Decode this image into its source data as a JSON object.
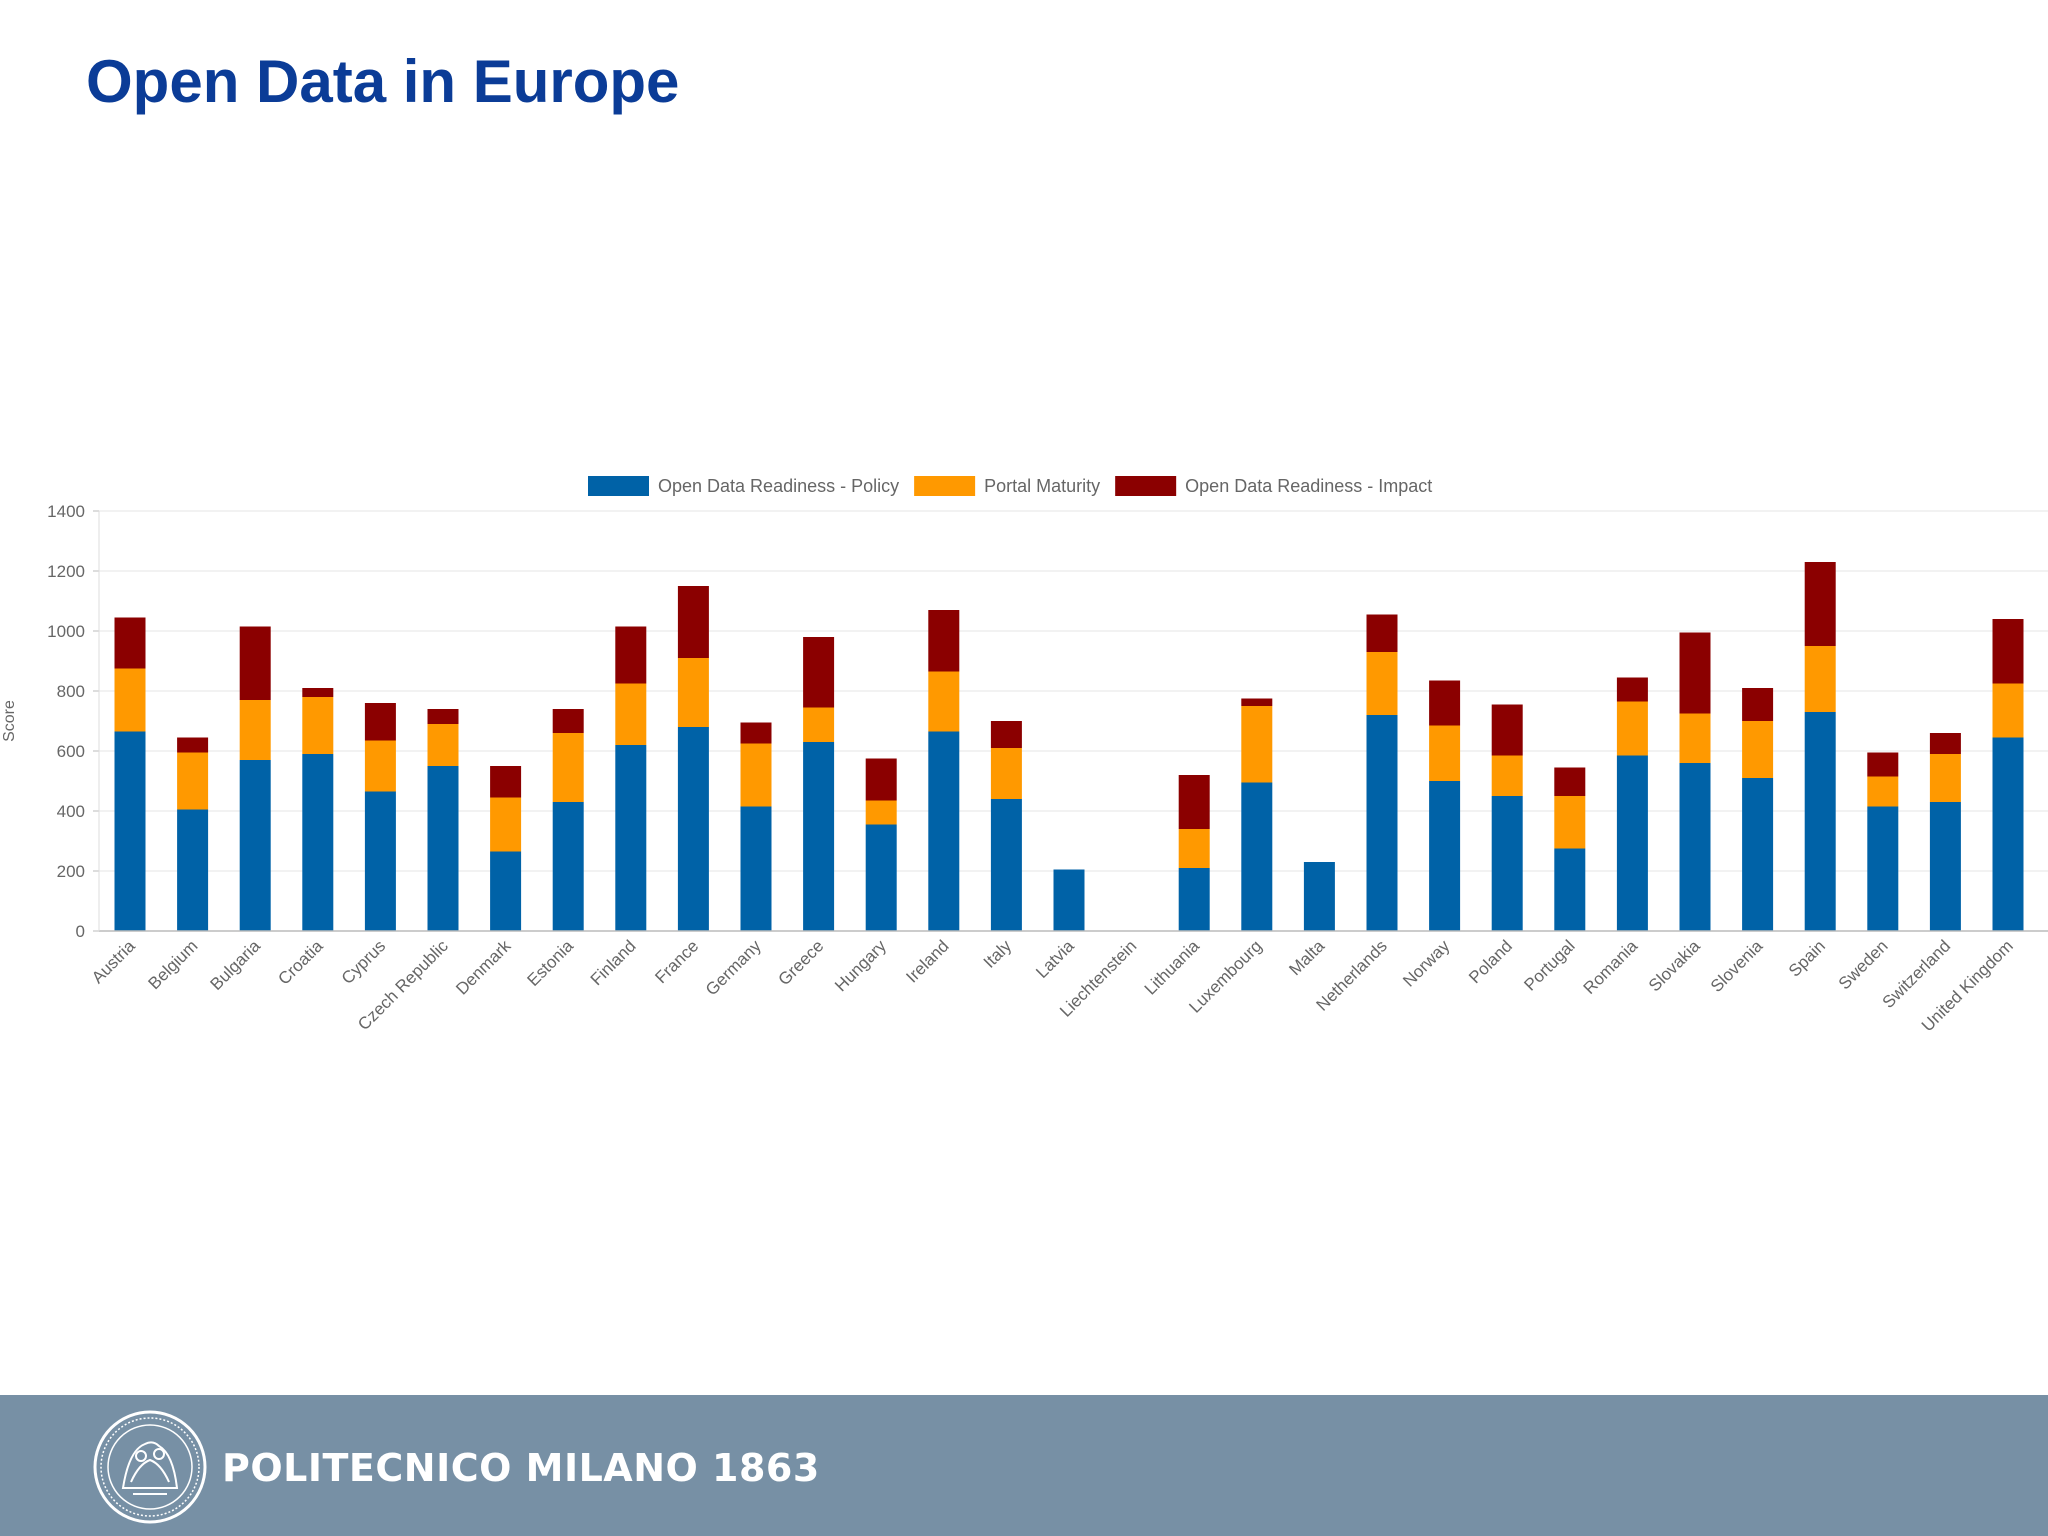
{
  "slide": {
    "title": "Open Data in Europe"
  },
  "colors": {
    "policy": "#0062a7",
    "portal": "#ff9900",
    "impact": "#8b0000",
    "title": "#0b3c97",
    "footer": "#7790a5"
  },
  "footer": {
    "brand_text": "POLITECNICO MILANO 1863",
    "logo_icon": "politecnico-seal-icon"
  },
  "chart_data": {
    "type": "bar",
    "stacked": true,
    "title": "",
    "xlabel": "",
    "ylabel": "Score",
    "ylim": [
      0,
      1400
    ],
    "yticks": [
      0,
      200,
      400,
      600,
      800,
      1000,
      1200,
      1400
    ],
    "grid": true,
    "legend_position": "top-center",
    "categories": [
      "Austria",
      "Belgium",
      "Bulgaria",
      "Croatia",
      "Cyprus",
      "Czech Republic",
      "Denmark",
      "Estonia",
      "Finland",
      "France",
      "Germany",
      "Greece",
      "Hungary",
      "Ireland",
      "Italy",
      "Latvia",
      "Liechtenstein",
      "Lithuania",
      "Luxembourg",
      "Malta",
      "Netherlands",
      "Norway",
      "Poland",
      "Portugal",
      "Romania",
      "Slovakia",
      "Slovenia",
      "Spain",
      "Sweden",
      "Switzerland",
      "United Kingdom"
    ],
    "series": [
      {
        "name": "Open Data Readiness - Policy",
        "color": "#0062a7",
        "values": [
          665,
          405,
          570,
          590,
          465,
          550,
          265,
          430,
          620,
          680,
          415,
          630,
          355,
          665,
          440,
          205,
          0,
          210,
          495,
          230,
          720,
          500,
          450,
          275,
          585,
          560,
          510,
          730,
          415,
          430,
          645
        ]
      },
      {
        "name": "Portal Maturity",
        "color": "#ff9900",
        "values": [
          210,
          190,
          200,
          190,
          170,
          140,
          180,
          230,
          205,
          230,
          210,
          115,
          80,
          200,
          170,
          0,
          0,
          130,
          255,
          0,
          210,
          185,
          135,
          175,
          180,
          165,
          190,
          220,
          100,
          160,
          180
        ]
      },
      {
        "name": "Open Data Readiness - Impact",
        "color": "#8b0000",
        "values": [
          170,
          50,
          245,
          30,
          125,
          50,
          105,
          80,
          190,
          240,
          70,
          235,
          140,
          205,
          90,
          0,
          0,
          180,
          25,
          0,
          125,
          150,
          170,
          95,
          80,
          270,
          110,
          280,
          80,
          70,
          215
        ]
      }
    ]
  }
}
